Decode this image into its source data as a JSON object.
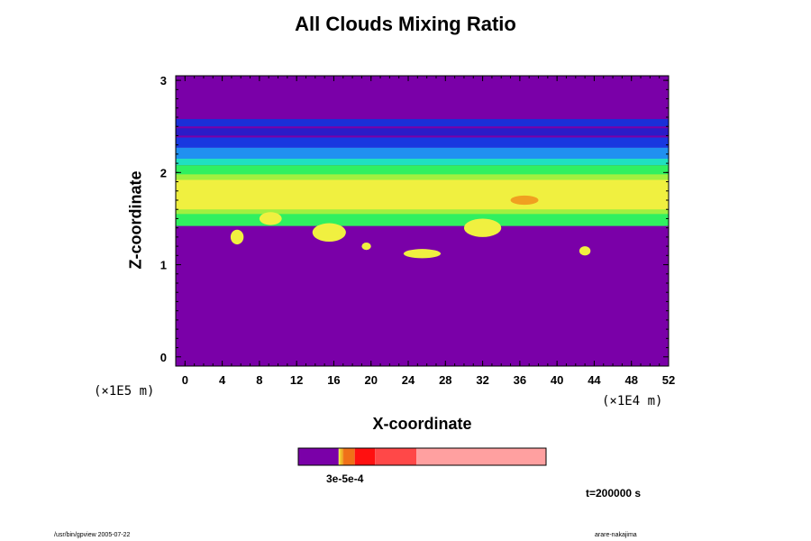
{
  "chart_data": {
    "type": "heatmap",
    "title": "All Clouds Mixing Ratio",
    "xlabel": "X-coordinate",
    "ylabel": "Z-coordinate",
    "x_unit": "(×1E4 m)",
    "z_unit": "(×1E5 m)",
    "xlim": [
      -1,
      52
    ],
    "ylim": [
      -0.1,
      3.05
    ],
    "x_ticks": [
      0,
      4,
      8,
      12,
      16,
      20,
      24,
      28,
      32,
      36,
      40,
      44,
      48,
      52
    ],
    "y_ticks": [
      0,
      1,
      2,
      3
    ],
    "background_level_color": "#7a00a8",
    "bands": [
      {
        "z0": 2.5,
        "z1": 2.58,
        "color": "#1a2fd8"
      },
      {
        "z0": 2.4,
        "z1": 2.48,
        "color": "#2a1cc8"
      },
      {
        "z0": 2.27,
        "z1": 2.38,
        "color": "#1838e0"
      },
      {
        "z0": 2.15,
        "z1": 2.27,
        "color": "#2090f0"
      },
      {
        "z0": 2.08,
        "z1": 2.15,
        "color": "#20e0c0"
      },
      {
        "z0": 1.42,
        "z1": 2.08,
        "color": "#30f060"
      },
      {
        "z0": 1.55,
        "z1": 1.98,
        "color": "#a0f040"
      },
      {
        "z0": 1.6,
        "z1": 1.92,
        "color": "#f0f040"
      }
    ],
    "blobs": [
      {
        "x": 5.6,
        "z": 1.3,
        "rx": 0.7,
        "rz": 0.08,
        "color": "#f0f040"
      },
      {
        "x": 9.2,
        "z": 1.5,
        "rx": 1.2,
        "rz": 0.07,
        "color": "#f0f040"
      },
      {
        "x": 15.5,
        "z": 1.35,
        "rx": 1.8,
        "rz": 0.1,
        "color": "#f0f040"
      },
      {
        "x": 19.5,
        "z": 1.2,
        "rx": 0.5,
        "rz": 0.04,
        "color": "#f0f040"
      },
      {
        "x": 25.5,
        "z": 1.12,
        "rx": 2.0,
        "rz": 0.05,
        "color": "#f0f040"
      },
      {
        "x": 32.0,
        "z": 1.4,
        "rx": 2.0,
        "rz": 0.1,
        "color": "#f0f040"
      },
      {
        "x": 43.0,
        "z": 1.15,
        "rx": 0.6,
        "rz": 0.05,
        "color": "#f0f040"
      },
      {
        "x": 30.5,
        "z": 1.75,
        "rx": 1.5,
        "rz": 0.06,
        "color": "#f0f040"
      },
      {
        "x": 36.5,
        "z": 1.7,
        "rx": 1.5,
        "rz": 0.05,
        "color": "#f0a020"
      }
    ],
    "colorbar": {
      "label": "3e-5e-4",
      "segments": [
        {
          "frac": 0.163,
          "color": "#7a00a8"
        },
        {
          "frac": 0.005,
          "color": "#f0f040"
        },
        {
          "frac": 0.007,
          "color": "#f0c020"
        },
        {
          "frac": 0.007,
          "color": "#f0a020"
        },
        {
          "frac": 0.046,
          "color": "#f07018"
        },
        {
          "frac": 0.082,
          "color": "#ff1010"
        },
        {
          "frac": 0.167,
          "color": "#ff4848"
        },
        {
          "frac": 0.523,
          "color": "#ffa0a0"
        }
      ]
    },
    "grid": false,
    "legend": "bottom"
  },
  "time_label": "t=200000 s",
  "footer_left": "/usr/bin/gpview 2005-07-22",
  "footer_right": "arare-nakajima"
}
